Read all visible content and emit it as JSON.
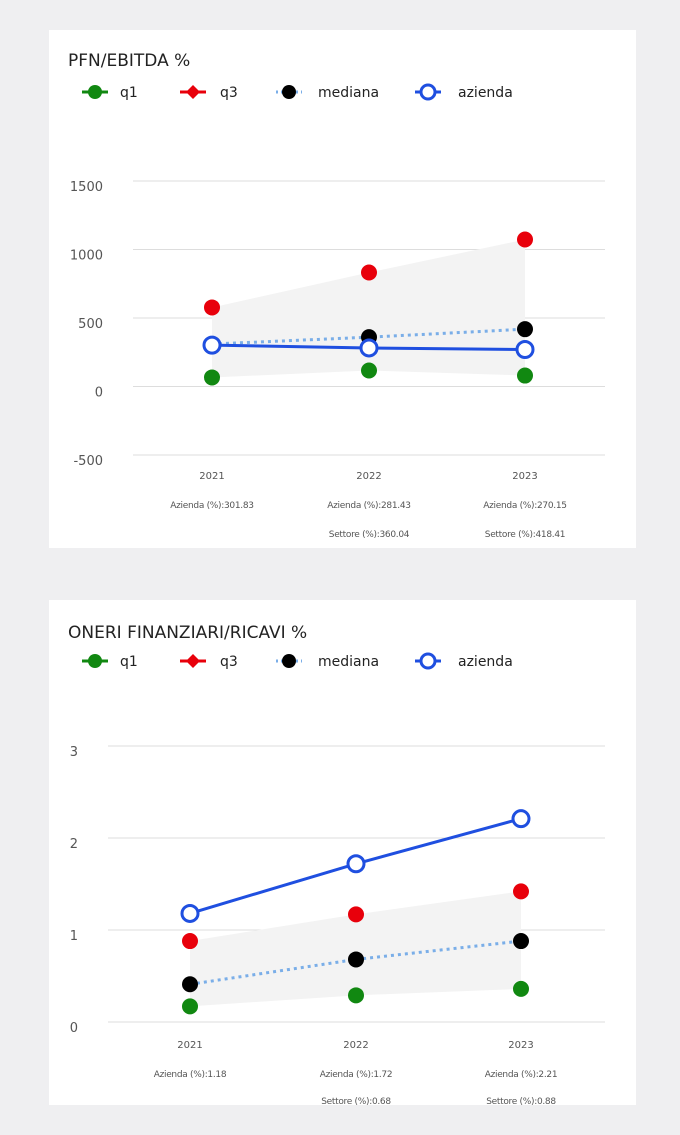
{
  "chart_data": [
    {
      "type": "line",
      "title": "PFN/EBITDA %",
      "categories": [
        "2021",
        "2022",
        "2023"
      ],
      "ylim": [
        -500,
        1500
      ],
      "yticks": [
        -500,
        0,
        500,
        1000,
        1500
      ],
      "grid": true,
      "band": true,
      "series": [
        {
          "name": "q1",
          "color": "#118811",
          "values": [
            66,
            117,
            80
          ]
        },
        {
          "name": "q3",
          "color": "#e8000b",
          "values": [
            577,
            832,
            1073
          ]
        },
        {
          "name": "mediana",
          "color": "#000000",
          "line_color": "#7aaee8",
          "values": [
            310,
            360.04,
            418.41
          ],
          "value_labels": [
            null,
            "Settore (%):360.04",
            "Settore (%):418.41"
          ]
        },
        {
          "name": "azienda",
          "color": "#1f4fe0",
          "values": [
            301.83,
            281.43,
            270.15
          ],
          "value_labels": [
            "Azienda (%):301.83",
            "Azienda (%):281.43",
            "Azienda (%):270.15"
          ]
        }
      ]
    },
    {
      "type": "line",
      "title": "ONERI FINANZIARI/RICAVI %",
      "categories": [
        "2021",
        "2022",
        "2023"
      ],
      "ylim": [
        0,
        3
      ],
      "yticks": [
        0,
        1,
        2,
        3
      ],
      "grid": true,
      "band": true,
      "series": [
        {
          "name": "q1",
          "color": "#118811",
          "values": [
            0.17,
            0.29,
            0.36
          ]
        },
        {
          "name": "q3",
          "color": "#e8000b",
          "values": [
            0.88,
            1.17,
            1.42
          ]
        },
        {
          "name": "mediana",
          "color": "#000000",
          "line_color": "#7aaee8",
          "values": [
            0.41,
            0.68,
            0.88
          ],
          "value_labels": [
            null,
            "Settore (%):0.68",
            "Settore (%):0.88"
          ]
        },
        {
          "name": "azienda",
          "color": "#1f4fe0",
          "values": [
            1.18,
            1.72,
            2.21
          ],
          "value_labels": [
            "Azienda (%):1.18",
            "Azienda (%):1.72",
            "Azienda (%):2.21"
          ]
        }
      ]
    }
  ]
}
